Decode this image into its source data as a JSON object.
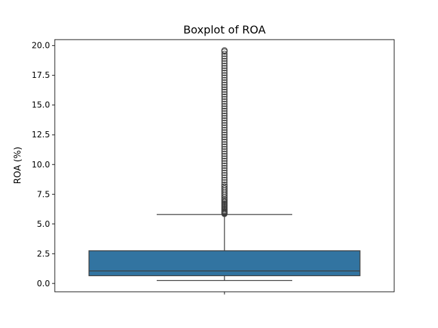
{
  "chart_data": {
    "type": "boxplot",
    "title": "Boxplot of ROA",
    "xlabel": "",
    "ylabel": "ROA (%)",
    "ylim": [
      -0.7,
      20.5
    ],
    "yticks": [
      0.0,
      2.5,
      5.0,
      7.5,
      10.0,
      12.5,
      15.0,
      17.5,
      20.0
    ],
    "ytick_labels": [
      "0.0",
      "2.5",
      "5.0",
      "7.5",
      "10.0",
      "12.5",
      "15.0",
      "17.5",
      "20.0"
    ],
    "grid": false,
    "box": {
      "whisker_low": 0.25,
      "q1": 0.65,
      "median": 1.05,
      "q3": 2.75,
      "whisker_high": 5.8,
      "color": "#3274a1",
      "edge_color": "#3d3d3d"
    },
    "outliers": [
      5.85,
      5.9,
      5.95,
      6.0,
      6.05,
      6.1,
      6.2,
      6.3,
      6.4,
      6.5,
      6.6,
      6.7,
      6.8,
      6.9,
      7.0,
      7.1,
      7.25,
      7.4,
      7.55,
      7.7,
      7.85,
      8.0,
      8.15,
      8.3,
      8.5,
      8.7,
      8.9,
      9.1,
      9.3,
      9.5,
      9.7,
      9.9,
      10.1,
      10.3,
      10.5,
      10.7,
      10.9,
      11.1,
      11.3,
      11.5,
      11.7,
      11.9,
      12.1,
      12.3,
      12.5,
      12.7,
      12.9,
      13.1,
      13.3,
      13.5,
      13.7,
      13.9,
      14.1,
      14.3,
      14.5,
      14.7,
      14.9,
      15.1,
      15.3,
      15.5,
      15.7,
      15.9,
      16.1,
      16.3,
      16.5,
      16.7,
      16.9,
      17.1,
      17.3,
      17.5,
      17.7,
      17.9,
      18.1,
      18.3,
      18.5,
      18.7,
      18.9,
      19.1,
      19.3,
      19.5,
      19.6
    ]
  }
}
